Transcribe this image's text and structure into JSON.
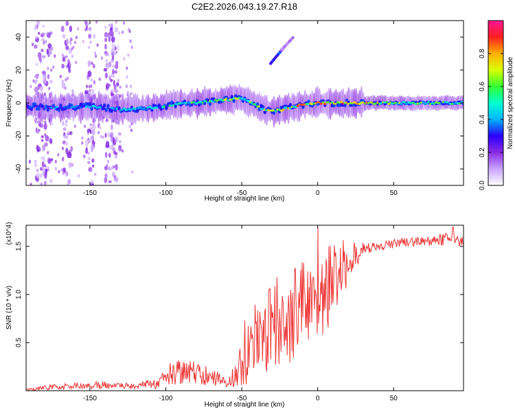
{
  "chart_data": [
    {
      "type": "heatmap",
      "title": "C2E2.2026.043.19.27.R18",
      "xlabel": "Height of straight line (km)",
      "ylabel": "Frequency (Hz)",
      "xlim": [
        -192,
        96
      ],
      "ylim": [
        -50,
        50
      ],
      "xticks": [
        -150,
        -100,
        -50,
        0,
        50
      ],
      "yticks": [
        -40,
        -20,
        0,
        20,
        40
      ],
      "grid": false,
      "colorbar": {
        "label": "Normalized spectral amplitude",
        "range": [
          0,
          1
        ],
        "ticks": [
          "0.0",
          "0.2",
          "0.4",
          "0.6",
          "0.8"
        ],
        "colors": [
          "#ffffff",
          "#c9a3ff",
          "#8a2be2",
          "#2a00ff",
          "#00b4ff",
          "#00ffd0",
          "#33ff33",
          "#d8ff00",
          "#ffb000",
          "#ff2020",
          "#ff1493"
        ]
      },
      "ridge": {
        "x": [
          -192,
          -170,
          -150,
          -130,
          -110,
          -95,
          -80,
          -70,
          -60,
          -52,
          -45,
          -40,
          -35,
          -28,
          -20,
          -10,
          0,
          10,
          20,
          40,
          60,
          80,
          96
        ],
        "y": [
          -2,
          -3,
          -2,
          -4,
          -3,
          -1,
          0,
          1,
          2,
          3,
          1,
          -2,
          -4,
          -5,
          -3,
          -1,
          0,
          0,
          0,
          0,
          0,
          0,
          0
        ],
        "amp": [
          0.35,
          0.45,
          0.5,
          0.5,
          0.55,
          0.6,
          0.65,
          0.7,
          0.75,
          0.75,
          0.7,
          0.7,
          0.75,
          0.8,
          0.85,
          0.9,
          0.95,
          0.95,
          0.95,
          0.8,
          0.7,
          0.65,
          0.6
        ]
      },
      "streaks": [
        {
          "x": [
            -31,
            -22
          ],
          "y": [
            24,
            34
          ],
          "amp": 0.35
        },
        {
          "x": [
            -24,
            -16
          ],
          "y": [
            32,
            40
          ],
          "amp": 0.15
        }
      ],
      "noise_columns": [
        -183,
        -178,
        -165,
        -150,
        -137,
        -133
      ]
    },
    {
      "type": "line",
      "xlabel": "Height of straight line (km)",
      "ylabel": "SNR (10 * v/v)",
      "y_multiplier": "(x10^4)",
      "xlim": [
        -192,
        96
      ],
      "ylim": [
        0,
        1.72
      ],
      "xticks": [
        -150,
        -100,
        -50,
        0,
        50
      ],
      "yticks": [
        "0.5",
        "1.0",
        "1.5"
      ],
      "grid": false,
      "series": [
        {
          "color": "#ee3333",
          "envelope": {
            "x": [
              -192,
              -175,
              -160,
              -140,
              -120,
              -105,
              -100,
              -90,
              -80,
              -70,
              -60,
              -55,
              -50,
              -45,
              -40,
              -35,
              -30,
              -25,
              -20,
              -15,
              -10,
              -5,
              0,
              5,
              10,
              15,
              20,
              25,
              30,
              40,
              50,
              60,
              70,
              80,
              90,
              96
            ],
            "mean": [
              0.01,
              0.04,
              0.05,
              0.06,
              0.05,
              0.08,
              0.16,
              0.2,
              0.18,
              0.15,
              0.12,
              0.14,
              0.25,
              0.45,
              0.55,
              0.6,
              0.65,
              0.65,
              0.7,
              0.8,
              0.9,
              0.95,
              1.0,
              1.05,
              1.15,
              1.25,
              1.3,
              1.4,
              1.47,
              1.5,
              1.53,
              1.55,
              1.55,
              1.57,
              1.58,
              1.55
            ],
            "spread": [
              0.01,
              0.03,
              0.03,
              0.04,
              0.03,
              0.06,
              0.12,
              0.14,
              0.12,
              0.1,
              0.08,
              0.1,
              0.25,
              0.35,
              0.4,
              0.45,
              0.45,
              0.45,
              0.45,
              0.45,
              0.45,
              0.45,
              0.5,
              0.45,
              0.4,
              0.35,
              0.25,
              0.15,
              0.07,
              0.05,
              0.05,
              0.05,
              0.05,
              0.06,
              0.08,
              0.05
            ]
          },
          "peaks": [
            [
              0,
              1.69
            ],
            [
              -15,
              1.27
            ],
            [
              -27,
              1.18
            ],
            [
              -32,
              1.05
            ],
            [
              -38,
              0.82
            ],
            [
              -48,
              0.73
            ],
            [
              89,
              1.7
            ]
          ]
        }
      ]
    }
  ]
}
